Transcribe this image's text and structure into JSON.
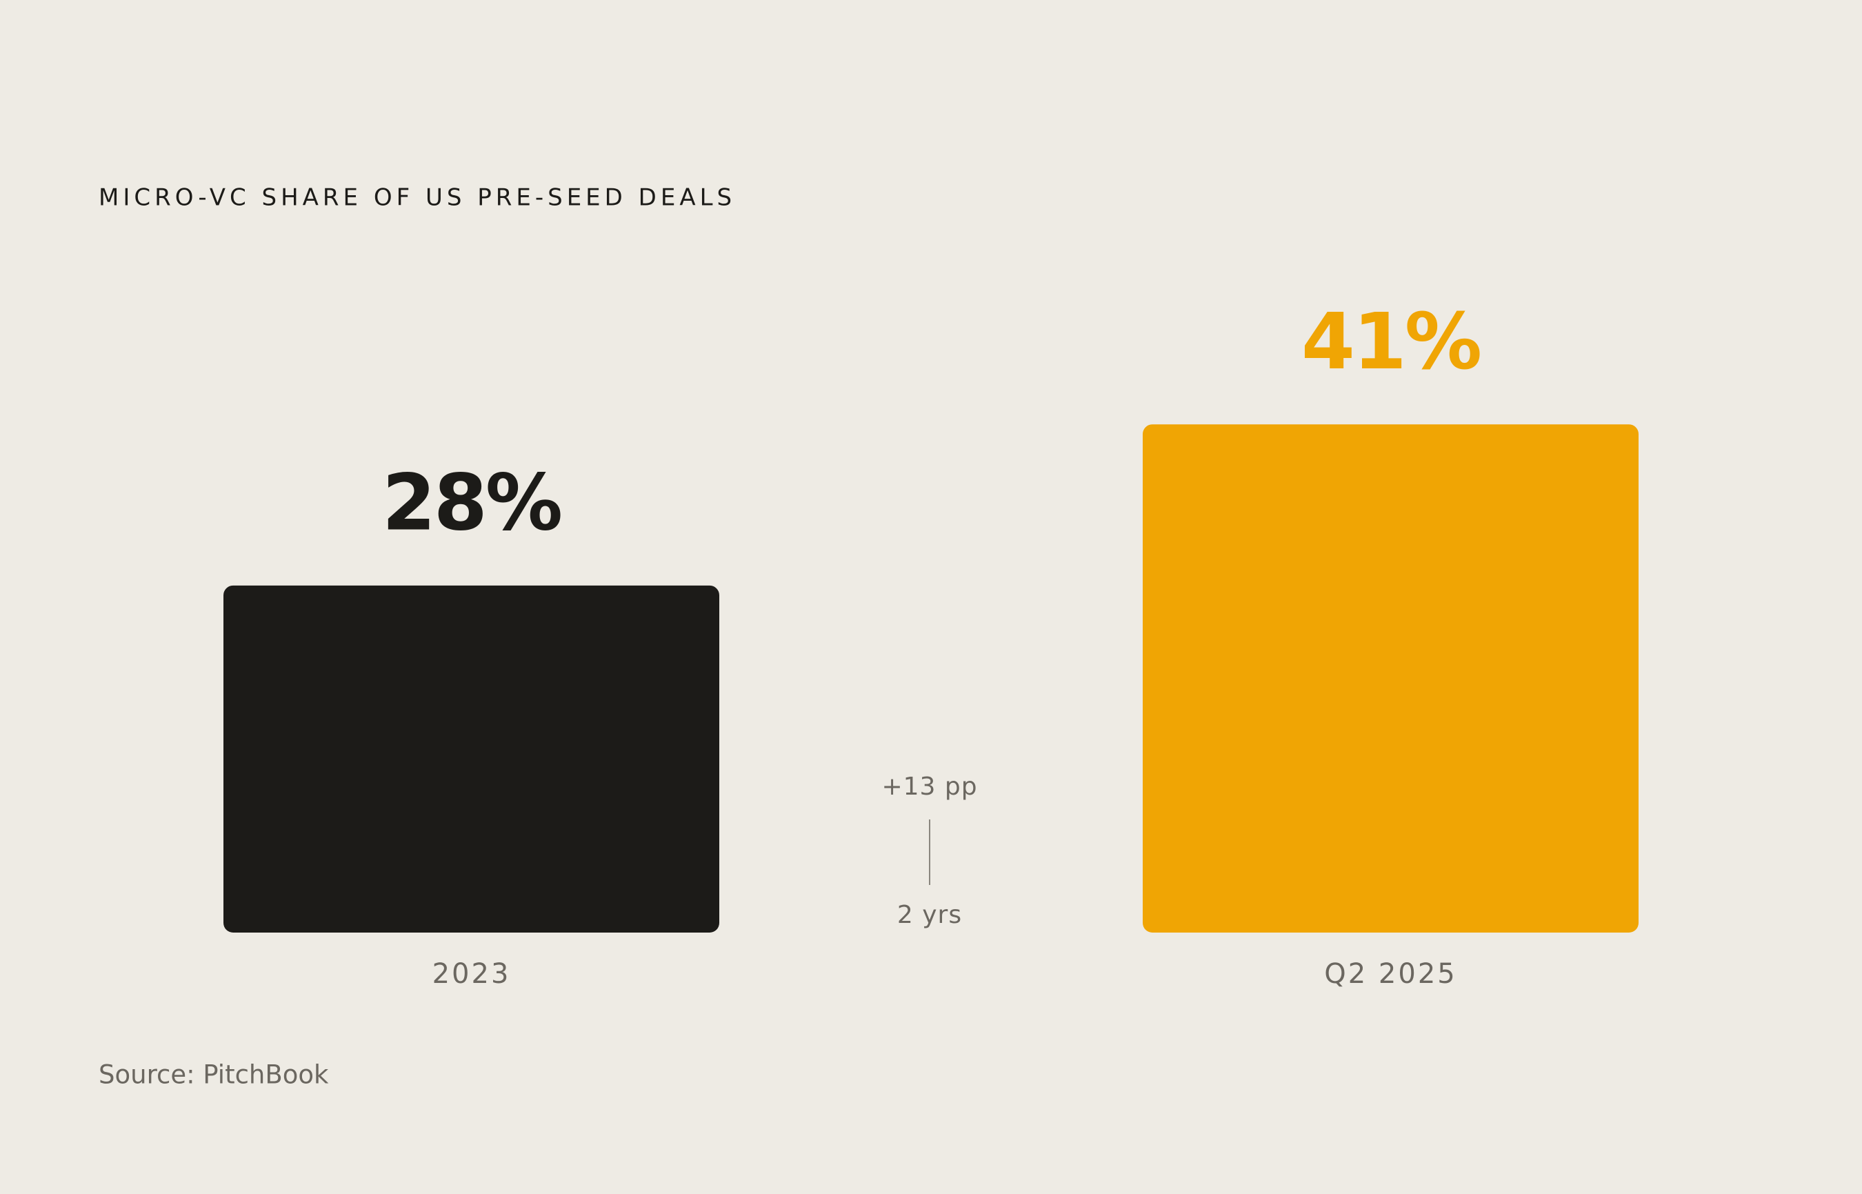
{
  "chart_data": {
    "type": "bar",
    "title": "MICRO-VC SHARE OF US PRE-SEED DEALS",
    "categories": [
      "2023",
      "Q2 2025"
    ],
    "values": [
      28,
      41
    ],
    "value_labels": [
      "28%",
      "41%"
    ],
    "colors": [
      "#1c1b18",
      "#f0a504"
    ],
    "annotations": [
      "+13 pp",
      "2 yrs"
    ],
    "source": "Source: PitchBook"
  }
}
